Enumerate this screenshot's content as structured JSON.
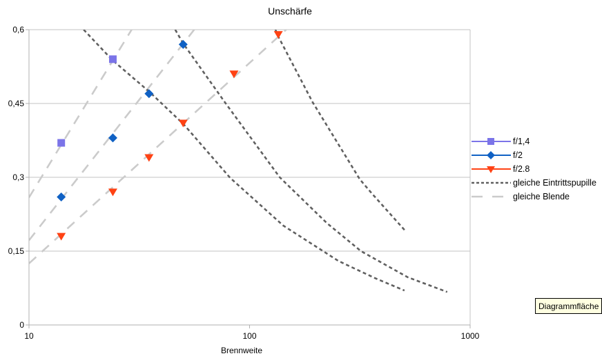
{
  "title": "Unschärfe",
  "colors": {
    "f14": "#7B74E8",
    "f2": "#1061C4",
    "f28": "#FF4214",
    "pupille_curve": "#606060",
    "blende_line": "#CBCBCB",
    "gridline": "#C3C3C3",
    "axis": "#B0B0B0",
    "tooltip_bg": "#FFFFE1"
  },
  "chart_data": {
    "type": "scatter",
    "title": "Unschärfe",
    "xlabel": "Brennweite",
    "ylabel": "",
    "x_scale": "log",
    "xlim": [
      10,
      1000
    ],
    "ylim": [
      0,
      0.6
    ],
    "grid": "horizontal",
    "legend_position": "right",
    "x_ticks": [
      {
        "label": "10",
        "v": 10
      },
      {
        "label": "100",
        "v": 100
      },
      {
        "label": "1000",
        "v": 1000
      }
    ],
    "y_ticks": [
      {
        "label": "0",
        "v": 0
      },
      {
        "label": "0,15",
        "v": 0.15
      },
      {
        "label": "0,3",
        "v": 0.3
      },
      {
        "label": "0,45",
        "v": 0.45
      },
      {
        "label": "0,6",
        "v": 0.6
      }
    ],
    "series": [
      {
        "name": "f/1,4",
        "marker": "square",
        "color": "#7B74E8",
        "x": [
          14,
          24
        ],
        "y": [
          0.37,
          0.54
        ]
      },
      {
        "name": "f/2",
        "marker": "diamond",
        "color": "#1061C4",
        "x": [
          14,
          24,
          35,
          50
        ],
        "y": [
          0.26,
          0.38,
          0.47,
          0.57
        ]
      },
      {
        "name": "f/2.8",
        "marker": "triangle-down",
        "color": "#FF4214",
        "x": [
          14,
          24,
          35,
          50,
          85,
          135
        ],
        "y": [
          0.18,
          0.27,
          0.34,
          0.41,
          0.51,
          0.59
        ]
      },
      {
        "name": "gleiche Eintrittspupille",
        "style": "dotted",
        "color": "#606060",
        "paths": [
          [
            [
              17.7,
              0.6
            ],
            [
              23.9,
              0.538
            ],
            [
              35.1,
              0.474
            ],
            [
              50.2,
              0.408
            ],
            [
              81.6,
              0.299
            ],
            [
              142,
              0.202
            ],
            [
              253,
              0.13
            ],
            [
              371,
              0.095
            ],
            [
              504,
              0.07
            ]
          ],
          [
            [
              46,
              0.6
            ],
            [
              50,
              0.572
            ],
            [
              78,
              0.45
            ],
            [
              137,
              0.3
            ],
            [
              224,
              0.207
            ],
            [
              320,
              0.15
            ],
            [
              521,
              0.097
            ],
            [
              787,
              0.067
            ]
          ],
          [
            [
              131,
              0.6
            ],
            [
              135,
              0.586
            ],
            [
              193,
              0.453
            ],
            [
              316,
              0.296
            ],
            [
              357,
              0.268
            ],
            [
              504,
              0.193
            ]
          ]
        ]
      },
      {
        "name": "gleiche Blende",
        "style": "dashed",
        "color": "#CBCBCB",
        "lines": [
          [
            [
              10,
              0.259
            ],
            [
              29.2,
              0.6
            ]
          ],
          [
            [
              10,
              0.172
            ],
            [
              56.1,
              0.6
            ]
          ],
          [
            [
              10,
              0.125
            ],
            [
              146.5,
              0.6
            ]
          ]
        ]
      }
    ]
  },
  "legend": {
    "items": [
      {
        "label": "f/1,4"
      },
      {
        "label": "f/2"
      },
      {
        "label": "f/2.8"
      },
      {
        "label": "gleiche Eintrittspupille"
      },
      {
        "label": "gleiche Blende"
      }
    ]
  },
  "tooltip": {
    "text": "Diagrammfläche"
  }
}
